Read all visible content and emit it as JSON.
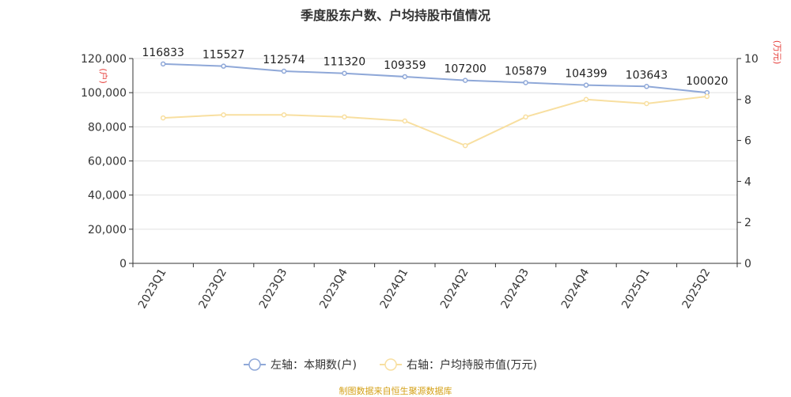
{
  "chart_data": {
    "type": "line",
    "title": "季度股东户数、户均持股市值情况",
    "categories": [
      "2023Q1",
      "2023Q2",
      "2023Q3",
      "2023Q4",
      "2024Q1",
      "2024Q2",
      "2024Q3",
      "2024Q4",
      "2025Q1",
      "2025Q2"
    ],
    "left_axis": {
      "label": "(户)",
      "ylim": [
        0,
        120000
      ],
      "ticks": [
        "0",
        "20,000",
        "40,000",
        "60,000",
        "80,000",
        "100,000",
        "120,000"
      ]
    },
    "right_axis": {
      "label": "(万元)",
      "ylim": [
        0,
        10
      ],
      "ticks": [
        "0",
        "2",
        "4",
        "6",
        "8",
        "10"
      ]
    },
    "series": [
      {
        "name": "左轴：本期数(户)",
        "axis": "left",
        "color": "#8fa8d8",
        "values": [
          116833,
          115527,
          112574,
          111320,
          109359,
          107200,
          105879,
          104399,
          103643,
          100020
        ],
        "labels": [
          "116833",
          "115527",
          "112574",
          "111320",
          "109359",
          "107200",
          "105879",
          "104399",
          "103643",
          "100020"
        ]
      },
      {
        "name": "右轴：户均持股市值(万元)",
        "axis": "right",
        "color": "#f8dfa0",
        "values": [
          7.1,
          7.25,
          7.25,
          7.15,
          6.95,
          5.75,
          7.15,
          8.0,
          7.8,
          8.15
        ]
      }
    ],
    "grid": true,
    "legend": "bottom"
  },
  "source": "制图数据来自恒生聚源数据库"
}
